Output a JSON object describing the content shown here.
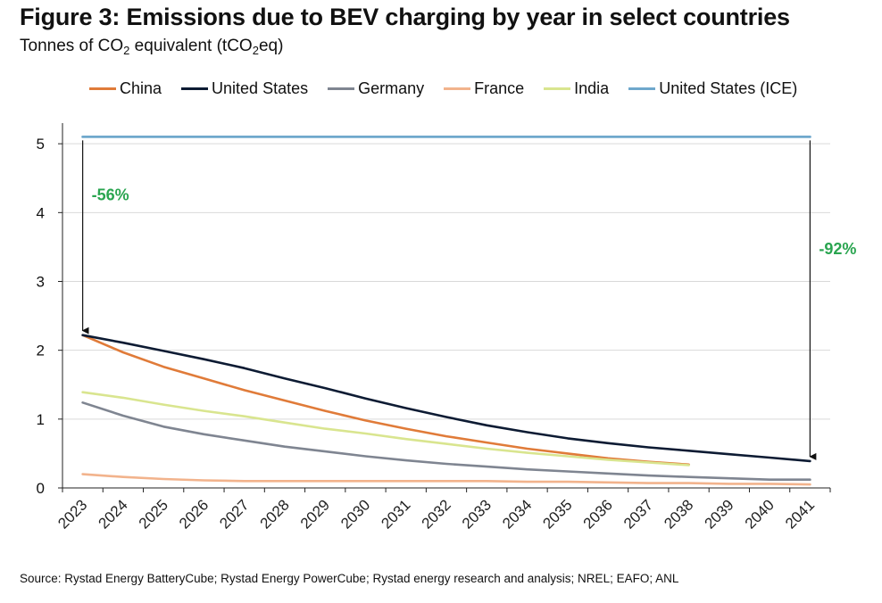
{
  "header": {
    "title": "Figure 3: Emissions due to BEV charging by year in select countries",
    "subtitle_prefix": "Tonnes of CO",
    "subtitle_sub": "2",
    "subtitle_mid": " equivalent (tCO",
    "subtitle_sub2": "2",
    "subtitle_suffix": "eq)"
  },
  "source": "Source: Rystad Energy BatteryCube; Rystad Energy PowerCube; Rystad energy research and analysis; NREL; EAFO; ANL",
  "chart_data": {
    "type": "line",
    "title": "Figure 3: Emissions due to BEV charging by year in select countries",
    "ylabel": "Tonnes of CO2 equivalent (tCO2eq)",
    "xlabel": "",
    "ylim": [
      0,
      5.3
    ],
    "yticks": [
      0,
      1,
      2,
      3,
      4,
      5
    ],
    "categories": [
      "2023",
      "2024",
      "2025",
      "2026",
      "2027",
      "2028",
      "2029",
      "2030",
      "2031",
      "2032",
      "2033",
      "2034",
      "2035",
      "2036",
      "2037",
      "2038",
      "2039",
      "2040",
      "2041"
    ],
    "grid": "horizontal",
    "legend_position": "top",
    "series": [
      {
        "name": "China",
        "color": "#e07b39",
        "values": [
          2.22,
          1.97,
          1.76,
          1.59,
          1.42,
          1.27,
          1.12,
          0.98,
          0.86,
          0.75,
          0.66,
          0.57,
          0.5,
          0.43,
          0.38,
          0.34,
          null,
          null,
          null
        ]
      },
      {
        "name": "United States",
        "color": "#0d1b33",
        "values": [
          2.22,
          2.11,
          1.99,
          1.87,
          1.74,
          1.59,
          1.45,
          1.3,
          1.16,
          1.03,
          0.91,
          0.81,
          0.72,
          0.65,
          0.59,
          0.54,
          0.49,
          0.44,
          0.39
        ]
      },
      {
        "name": "Germany",
        "color": "#7f8591",
        "values": [
          1.24,
          1.05,
          0.89,
          0.78,
          0.69,
          0.6,
          0.53,
          0.46,
          0.4,
          0.35,
          0.31,
          0.27,
          0.24,
          0.21,
          0.18,
          0.16,
          0.14,
          0.12,
          0.12
        ]
      },
      {
        "name": "France",
        "color": "#f2b38c",
        "values": [
          0.2,
          0.16,
          0.13,
          0.11,
          0.1,
          0.1,
          0.1,
          0.1,
          0.1,
          0.1,
          0.1,
          0.09,
          0.09,
          0.08,
          0.07,
          0.07,
          0.06,
          0.06,
          0.05
        ]
      },
      {
        "name": "India",
        "color": "#d9e58f",
        "values": [
          1.39,
          1.31,
          1.21,
          1.12,
          1.04,
          0.95,
          0.86,
          0.79,
          0.71,
          0.64,
          0.57,
          0.51,
          0.46,
          0.41,
          0.37,
          0.33,
          null,
          null,
          null
        ]
      },
      {
        "name": "United States (ICE)",
        "color": "#6fa8cc",
        "values": [
          5.1,
          5.1,
          5.1,
          5.1,
          5.1,
          5.1,
          5.1,
          5.1,
          5.1,
          5.1,
          5.1,
          5.1,
          5.1,
          5.1,
          5.1,
          5.1,
          5.1,
          5.1,
          5.1
        ]
      }
    ],
    "annotations": [
      {
        "text": "-56%",
        "x_category": "2023",
        "from": 5.1,
        "to": 2.22
      },
      {
        "text": "-92%",
        "x_category": "2041",
        "from": 5.1,
        "to": 0.39
      }
    ]
  }
}
